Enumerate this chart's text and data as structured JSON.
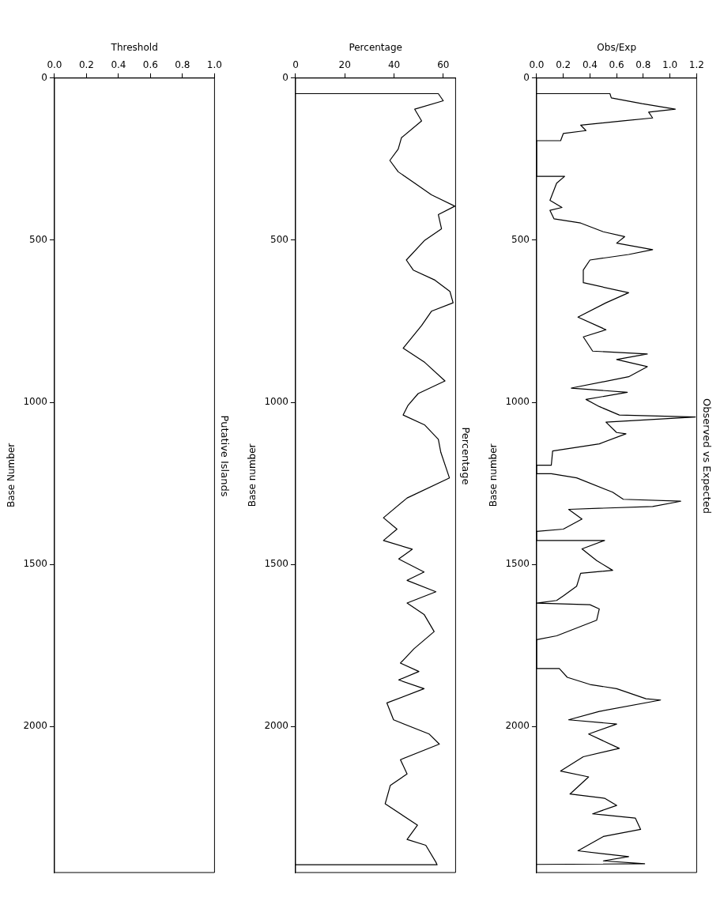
{
  "chart_data": [
    {
      "type": "line",
      "orientation": "horizontal",
      "title": "Putative Islands",
      "xlabel": "Threshold",
      "ylabel": "Base Number",
      "xlim": [
        0,
        1
      ],
      "xticks": [
        {
          "value": 0,
          "label": "0.0"
        },
        {
          "value": 0.2,
          "label": "0.2"
        },
        {
          "value": 0.4,
          "label": "0.4"
        },
        {
          "value": 0.6,
          "label": "0.6"
        },
        {
          "value": 0.8,
          "label": "0.8"
        },
        {
          "value": 1,
          "label": "1.0"
        }
      ],
      "ylim": [
        2450,
        0
      ],
      "yticks": [
        0,
        500,
        1000,
        1500,
        2000
      ],
      "grid": false,
      "legend": false
    },
    {
      "type": "line",
      "orientation": "horizontal",
      "title": "Percentage",
      "xlabel": "Percentage",
      "ylabel": "Base number",
      "xlim": [
        0,
        65
      ],
      "xticks": [
        0,
        20,
        40,
        60
      ],
      "ylim": [
        2450,
        0
      ],
      "yticks": [
        0,
        500,
        1000,
        1500,
        2000
      ],
      "grid": false,
      "legend": false,
      "series": [
        {
          "color": "#000000",
          "x": [
            48,
            48,
            70,
            96,
            132,
            184,
            219,
            254,
            289,
            324,
            360,
            395,
            421,
            465,
            500,
            561,
            592,
            623,
            658,
            693,
            719,
            763,
            833,
            877,
            934,
            973,
            1009,
            1039,
            1070,
            1114,
            1154,
            1233,
            1295,
            1356,
            1391,
            1426,
            1453,
            1483,
            1523,
            1549,
            1584,
            1619,
            1654,
            1707,
            1760,
            1804,
            1830,
            1856,
            1883,
            1927,
            1979,
            2023,
            2054,
            2102,
            2146,
            2181,
            2238,
            2304,
            2348,
            2366,
            2418,
            2426,
            2426
          ],
          "values": [
            0,
            58,
            60,
            48.4,
            51.2,
            43,
            41.7,
            38.3,
            41.7,
            48.4,
            55.2,
            64.7,
            58,
            59.3,
            52.5,
            45,
            47.8,
            56.6,
            62.7,
            64,
            55.2,
            51.2,
            43.7,
            52.5,
            60.7,
            49.8,
            45.7,
            43.7,
            52.5,
            58,
            59,
            62.5,
            45.3,
            35.7,
            41.2,
            35.7,
            47.4,
            41.9,
            52.2,
            45.3,
            57,
            45.3,
            52.2,
            56.3,
            48.1,
            42.6,
            50.1,
            41.9,
            52.2,
            37.1,
            39.8,
            54.3,
            58.4,
            42.6,
            45.3,
            38.5,
            36.4,
            49.5,
            45.3,
            52.9,
            57,
            57.5,
            0
          ]
        }
      ]
    },
    {
      "type": "line",
      "orientation": "horizontal",
      "title": "Observed vs Expected",
      "xlabel": "Obs/Exp",
      "ylabel": "Base number",
      "xlim": [
        0,
        1.2
      ],
      "xticks": [
        {
          "value": 0,
          "label": "0.0"
        },
        {
          "value": 0.2,
          "label": "0.2"
        },
        {
          "value": 0.4,
          "label": "0.4"
        },
        {
          "value": 0.6,
          "label": "0.6"
        },
        {
          "value": 0.8,
          "label": "0.8"
        },
        {
          "value": 1,
          "label": "1.0"
        },
        {
          "value": 1.2,
          "label": "1.2"
        }
      ],
      "ylim": [
        2450,
        0
      ],
      "yticks": [
        0,
        500,
        1000,
        1500,
        2000
      ],
      "grid": false,
      "legend": false,
      "series": [
        {
          "color": "#000000",
          "x": [
            48,
            48,
            61,
            79,
            96,
            105,
            123,
            132,
            145,
            162,
            171,
            193,
            193,
            303,
            303,
            324,
            377,
            399,
            408,
            434,
            447,
            474,
            489,
            509,
            529,
            544,
            561,
            592,
            631,
            662,
            693,
            737,
            776,
            798,
            842,
            851,
            868,
            890,
            921,
            956,
            969,
            991,
            1013,
            1039,
            1045,
            1061,
            1093,
            1097,
            1128,
            1150,
            1194,
            1194,
            1220,
            1220,
            1233,
            1277,
            1299,
            1305,
            1321,
            1330,
            1360,
            1391,
            1398,
            1426,
            1426,
            1452,
            1488,
            1518,
            1527,
            1567,
            1597,
            1611,
            1619,
            1624,
            1637,
            1672,
            1720,
            1732,
            1821,
            1821,
            1848,
            1870,
            1883,
            1914,
            1918,
            1953,
            1979,
            1992,
            2023,
            2067,
            2093,
            2137,
            2155,
            2208,
            2221,
            2243,
            2269,
            2282,
            2317,
            2339,
            2383,
            2401,
            2414,
            2423,
            2425
          ],
          "values": [
            0,
            0.55,
            0.56,
            0.79,
            1.04,
            0.84,
            0.87,
            0.65,
            0.33,
            0.37,
            0.2,
            0.18,
            0,
            0,
            0.21,
            0.15,
            0.1,
            0.19,
            0.1,
            0.13,
            0.33,
            0.5,
            0.66,
            0.6,
            0.87,
            0.69,
            0.4,
            0.35,
            0.35,
            0.69,
            0.52,
            0.31,
            0.52,
            0.35,
            0.42,
            0.83,
            0.6,
            0.83,
            0.69,
            0.26,
            0.68,
            0.37,
            0.47,
            0.62,
            1.19,
            0.52,
            0.6,
            0.67,
            0.47,
            0.12,
            0.11,
            0,
            0,
            0.11,
            0.3,
            0.57,
            0.65,
            1.08,
            0.87,
            0.24,
            0.34,
            0.2,
            0,
            0,
            0.51,
            0.34,
            0.45,
            0.57,
            0.33,
            0.3,
            0.2,
            0.15,
            0,
            0.4,
            0.47,
            0.45,
            0.15,
            0,
            0,
            0.17,
            0.23,
            0.4,
            0.6,
            0.82,
            0.93,
            0.47,
            0.24,
            0.6,
            0.39,
            0.62,
            0.35,
            0.18,
            0.39,
            0.25,
            0.51,
            0.6,
            0.42,
            0.74,
            0.78,
            0.5,
            0.31,
            0.69,
            0.5,
            0.81,
            0
          ]
        }
      ]
    }
  ]
}
